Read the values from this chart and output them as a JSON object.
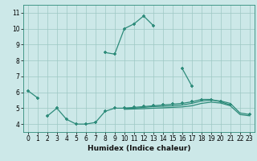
{
  "xlabel": "Humidex (Indice chaleur)",
  "x_values": [
    0,
    1,
    2,
    3,
    4,
    5,
    6,
    7,
    8,
    9,
    10,
    11,
    12,
    13,
    14,
    15,
    16,
    17,
    18,
    19,
    20,
    21,
    22,
    23
  ],
  "curve_main": [
    6.1,
    5.65,
    null,
    null,
    null,
    null,
    null,
    null,
    8.5,
    8.4,
    10.0,
    10.3,
    10.8,
    10.2,
    null,
    null,
    7.5,
    6.4,
    null,
    null,
    null,
    null,
    null,
    null
  ],
  "curve_low": [
    null,
    null,
    4.5,
    5.0,
    4.3,
    4.0,
    4.0,
    4.1,
    4.8,
    5.0,
    5.0,
    5.05,
    5.1,
    5.15,
    5.2,
    5.25,
    5.3,
    5.4,
    5.55,
    5.55,
    5.4,
    5.2,
    null,
    4.6
  ],
  "flat1_x": [
    10,
    11,
    12,
    13,
    14,
    15,
    16,
    17,
    18,
    19,
    20,
    21,
    22,
    23
  ],
  "flat1_y": [
    5.0,
    5.0,
    5.05,
    5.1,
    5.12,
    5.15,
    5.2,
    5.3,
    5.45,
    5.5,
    5.45,
    5.3,
    4.7,
    4.6
  ],
  "flat2_x": [
    10,
    11,
    12,
    13,
    14,
    15,
    16,
    17,
    18,
    19,
    20,
    21,
    22,
    23
  ],
  "flat2_y": [
    4.93,
    4.95,
    4.97,
    5.0,
    5.02,
    5.05,
    5.08,
    5.15,
    5.3,
    5.38,
    5.32,
    5.15,
    4.6,
    4.52
  ],
  "ylim": [
    3.5,
    11.5
  ],
  "xlim": [
    -0.5,
    23.5
  ],
  "yticks": [
    4,
    5,
    6,
    7,
    8,
    9,
    10,
    11
  ],
  "xticks": [
    0,
    1,
    2,
    3,
    4,
    5,
    6,
    7,
    8,
    9,
    10,
    11,
    12,
    13,
    14,
    15,
    16,
    17,
    18,
    19,
    20,
    21,
    22,
    23
  ],
  "line_color": "#2d8b7a",
  "bg_color": "#cce8e8",
  "grid_color": "#9ec8c4",
  "spine_color": "#2d8b7a"
}
